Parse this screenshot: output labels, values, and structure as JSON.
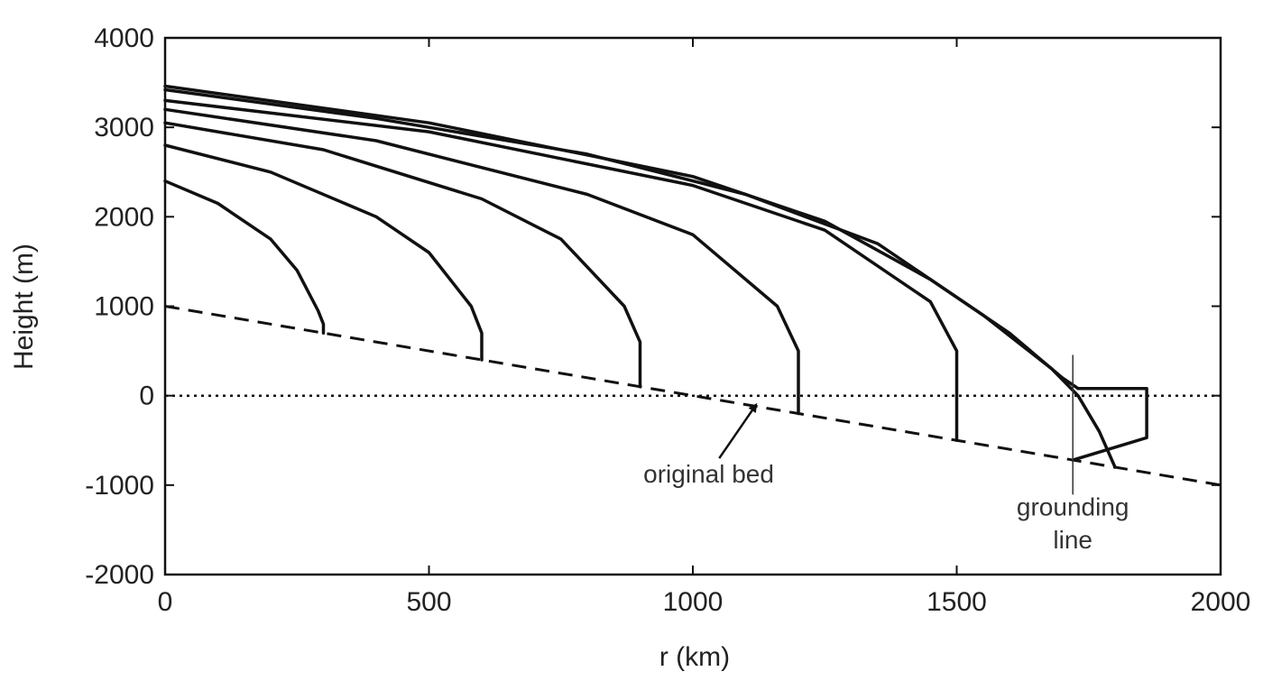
{
  "chart_data": {
    "type": "line",
    "title": "",
    "xlabel": "r (km)",
    "ylabel": "Height (m)",
    "xlim": [
      0,
      2000
    ],
    "ylim": [
      -2000,
      4000
    ],
    "xticks": [
      0,
      500,
      1000,
      1500,
      2000
    ],
    "xtick_labels": [
      "0",
      "500",
      "1000",
      "1500",
      "2000"
    ],
    "yticks": [
      4000,
      3000,
      2000,
      1000,
      0,
      -1000,
      -2000
    ],
    "ytick_labels": [
      "4000",
      "3000",
      "2000",
      "1000",
      "0",
      "-1000",
      "-2000"
    ],
    "grid": false,
    "legend": "none",
    "series": [
      {
        "style": "solid",
        "x": [
          0,
          100,
          200,
          250,
          290,
          300,
          300
        ],
        "y": [
          2400,
          2150,
          1750,
          1400,
          950,
          800,
          700
        ]
      },
      {
        "style": "solid",
        "x": [
          0,
          200,
          400,
          500,
          580,
          600,
          600
        ],
        "y": [
          2800,
          2500,
          2000,
          1600,
          1000,
          700,
          400
        ]
      },
      {
        "style": "solid",
        "x": [
          0,
          300,
          600,
          750,
          870,
          900,
          900
        ],
        "y": [
          3050,
          2750,
          2200,
          1750,
          1000,
          600,
          100
        ]
      },
      {
        "style": "solid",
        "x": [
          0,
          400,
          800,
          1000,
          1160,
          1200,
          1200
        ],
        "y": [
          3200,
          2850,
          2250,
          1800,
          1000,
          500,
          -200
        ]
      },
      {
        "style": "solid",
        "x": [
          0,
          500,
          1000,
          1250,
          1450,
          1500,
          1500
        ],
        "y": [
          3300,
          2950,
          2350,
          1850,
          1050,
          500,
          -500
        ]
      },
      {
        "style": "solid",
        "x": [
          0,
          400,
          800,
          1100,
          1350,
          1550,
          1680,
          1730,
          1770,
          1800
        ],
        "y": [
          3420,
          3100,
          2700,
          2250,
          1700,
          900,
          300,
          0,
          -400,
          -800
        ]
      },
      {
        "style": "solid",
        "x": [
          0,
          500,
          1000,
          1250,
          1450,
          1600,
          1700,
          1730
        ],
        "y": [
          3460,
          3050,
          2450,
          1950,
          1300,
          700,
          200,
          80
        ]
      },
      {
        "style": "solid",
        "x": [
          1730,
          1860,
          1860,
          1720
        ],
        "y": [
          80,
          80,
          -470,
          -720
        ]
      },
      {
        "style": "dashed",
        "x": [
          0,
          2000
        ],
        "y": [
          1000,
          -1000
        ]
      },
      {
        "style": "dotted",
        "x": [
          0,
          2000
        ],
        "y": [
          0,
          0
        ]
      },
      {
        "style": "thin",
        "x": [
          1720,
          1720
        ],
        "y": [
          450,
          -1100
        ]
      }
    ],
    "annotations": [
      {
        "text": "original bed",
        "x": 1030,
        "y": -970
      },
      {
        "text": "grounding",
        "x": 1720,
        "y": -1340
      },
      {
        "text": "line",
        "x": 1720,
        "y": -1710
      }
    ],
    "arrow": {
      "from": [
        1050,
        -700
      ],
      "to": [
        1120,
        -100
      ]
    }
  }
}
